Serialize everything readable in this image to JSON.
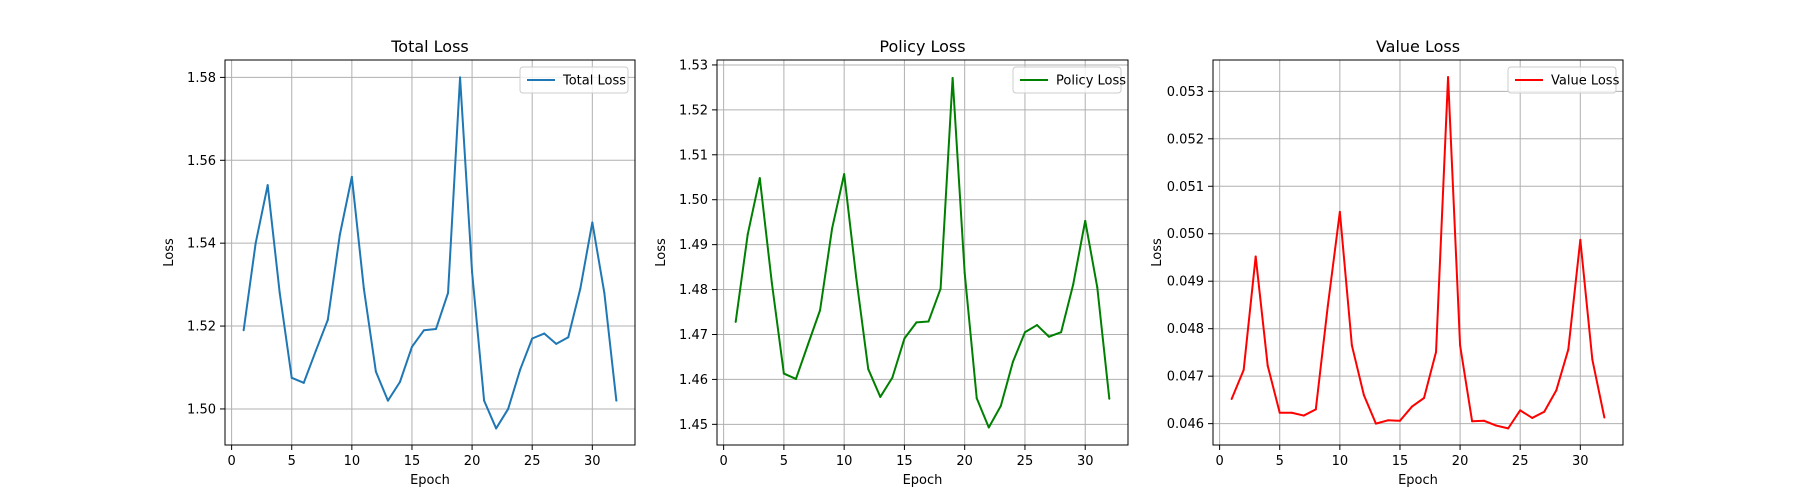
{
  "chart_data": [
    {
      "type": "line",
      "title": "Total Loss",
      "xlabel": "Epoch",
      "ylabel": "Loss",
      "xlim": [
        -0.55,
        33.55
      ],
      "ylim": [
        1.4913,
        1.5842
      ],
      "xticks": [
        0,
        5,
        10,
        15,
        20,
        25,
        30
      ],
      "yticks": [
        1.5,
        1.52,
        1.54,
        1.56,
        1.58
      ],
      "ytick_labels": [
        "1.50",
        "1.52",
        "1.54",
        "1.56",
        "1.58"
      ],
      "grid": true,
      "legend": "upper-right",
      "series": [
        {
          "name": "Total Loss",
          "color": "#1f77b4",
          "x": [
            1,
            2,
            3,
            4,
            5,
            6,
            7,
            8,
            9,
            10,
            11,
            12,
            13,
            14,
            15,
            16,
            17,
            18,
            19,
            20,
            21,
            22,
            23,
            24,
            25,
            26,
            27,
            28,
            29,
            30,
            31,
            32
          ],
          "y": [
            1.519,
            1.54,
            1.554,
            1.528,
            1.5075,
            1.5063,
            1.514,
            1.5215,
            1.542,
            1.556,
            1.529,
            1.509,
            1.502,
            1.5065,
            1.515,
            1.519,
            1.5193,
            1.528,
            1.58,
            1.533,
            1.502,
            1.4953,
            1.5,
            1.5095,
            1.517,
            1.5182,
            1.5157,
            1.5173,
            1.529,
            1.545,
            1.528,
            1.502
          ]
        }
      ]
    },
    {
      "type": "line",
      "title": "Policy Loss",
      "xlabel": "Epoch",
      "ylabel": "Loss",
      "xlim": [
        -0.55,
        33.55
      ],
      "ylim": [
        1.4454,
        1.5311
      ],
      "xticks": [
        0,
        5,
        10,
        15,
        20,
        25,
        30
      ],
      "yticks": [
        1.45,
        1.46,
        1.47,
        1.48,
        1.49,
        1.5,
        1.51,
        1.52,
        1.53
      ],
      "ytick_labels": [
        "1.45",
        "1.46",
        "1.47",
        "1.48",
        "1.49",
        "1.50",
        "1.51",
        "1.52",
        "1.53"
      ],
      "grid": true,
      "legend": "upper-right",
      "series": [
        {
          "name": "Policy Loss",
          "color": "#008000",
          "x": [
            1,
            2,
            3,
            4,
            5,
            6,
            7,
            8,
            9,
            10,
            11,
            12,
            13,
            14,
            15,
            16,
            17,
            18,
            19,
            20,
            21,
            22,
            23,
            24,
            25,
            26,
            27,
            28,
            29,
            30,
            31,
            32
          ],
          "y": [
            1.4728,
            1.4923,
            1.5048,
            1.4815,
            1.4613,
            1.4601,
            1.4678,
            1.4754,
            1.4936,
            1.5057,
            1.4827,
            1.4623,
            1.4561,
            1.4604,
            1.4691,
            1.4727,
            1.4729,
            1.4802,
            1.5271,
            1.4837,
            1.4558,
            1.4493,
            1.4541,
            1.4639,
            1.4705,
            1.4721,
            1.4695,
            1.4705,
            1.4811,
            1.4953,
            1.4805,
            1.4557
          ]
        }
      ]
    },
    {
      "type": "line",
      "title": "Value Loss",
      "xlabel": "Epoch",
      "ylabel": "Loss",
      "xlim": [
        -0.55,
        33.55
      ],
      "ylim": [
        0.04555,
        0.05366
      ],
      "xticks": [
        0,
        5,
        10,
        15,
        20,
        25,
        30
      ],
      "yticks": [
        0.046,
        0.047,
        0.048,
        0.049,
        0.05,
        0.051,
        0.052,
        0.053
      ],
      "ytick_labels": [
        "0.046",
        "0.047",
        "0.048",
        "0.049",
        "0.050",
        "0.051",
        "0.052",
        "0.053"
      ],
      "grid": true,
      "legend": "upper-right",
      "series": [
        {
          "name": "Value Loss",
          "color": "#ff0000",
          "x": [
            1,
            2,
            3,
            4,
            5,
            6,
            7,
            8,
            9,
            10,
            11,
            12,
            13,
            14,
            15,
            16,
            17,
            18,
            19,
            20,
            21,
            22,
            23,
            24,
            25,
            26,
            27,
            28,
            29,
            30,
            31,
            32
          ],
          "y": [
            0.04652,
            0.04713,
            0.04952,
            0.04722,
            0.04623,
            0.04623,
            0.04617,
            0.0463,
            0.04848,
            0.05046,
            0.04765,
            0.0466,
            0.046,
            0.04607,
            0.04606,
            0.04636,
            0.04654,
            0.04751,
            0.0533,
            0.04765,
            0.04605,
            0.04606,
            0.04596,
            0.0459,
            0.04628,
            0.04612,
            0.04625,
            0.0467,
            0.04756,
            0.04987,
            0.04735,
            0.04613
          ]
        }
      ]
    }
  ]
}
